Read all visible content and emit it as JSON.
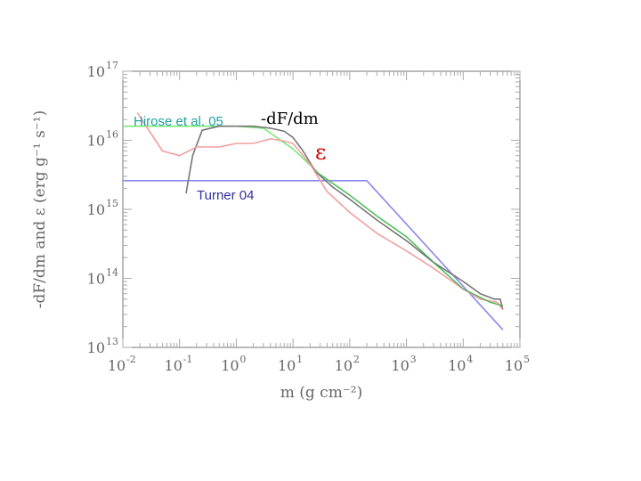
{
  "colors": {
    "background": "#ffffff",
    "frame": "#777777",
    "ticks": "#aaaaaa",
    "text": "#666666",
    "green": "#78e878",
    "darkgreen": "#3aa84a",
    "gray": "#777777",
    "pink": "#f0a0a0",
    "blue": "#8888ee",
    "label_hirose": "#22a0a0",
    "label_turner": "#3030a0",
    "label_dfdm": "#000000",
    "label_eps": "#cc0000"
  },
  "chart_data": {
    "type": "line",
    "xscale": "log",
    "yscale": "log",
    "xlim": [
      0.01,
      100000
    ],
    "ylim": [
      10000000000000.0,
      1e+17
    ],
    "xlabel": "m (g cm⁻²)",
    "ylabel": "-dF/dm and ε (erg g⁻¹ s⁻¹)",
    "xticks": [
      {
        "value": 0.01,
        "base": "10",
        "exp": "-2"
      },
      {
        "value": 0.1,
        "base": "10",
        "exp": "-1"
      },
      {
        "value": 1,
        "base": "10",
        "exp": "0"
      },
      {
        "value": 10,
        "base": "10",
        "exp": "1"
      },
      {
        "value": 100,
        "base": "10",
        "exp": "2"
      },
      {
        "value": 1000,
        "base": "10",
        "exp": "3"
      },
      {
        "value": 10000,
        "base": "10",
        "exp": "4"
      },
      {
        "value": 100000,
        "base": "10",
        "exp": "5"
      }
    ],
    "yticks": [
      {
        "value": 10000000000000.0,
        "base": "10",
        "exp": "13"
      },
      {
        "value": 100000000000000.0,
        "base": "10",
        "exp": "14"
      },
      {
        "value": 1000000000000000.0,
        "base": "10",
        "exp": "15"
      },
      {
        "value": 1e+16,
        "base": "10",
        "exp": "16"
      },
      {
        "value": 1e+17,
        "base": "10",
        "exp": "17"
      }
    ],
    "series": [
      {
        "name": "Turner 04",
        "color_key": "blue",
        "x": [
          0.01,
          200,
          50000
        ],
        "y": [
          2600000000000000.0,
          2600000000000000.0,
          18000000000000.0
        ]
      },
      {
        "name": "Hirose et al. 05",
        "color_key": "green",
        "x": [
          0.01,
          1,
          3,
          10,
          30,
          100,
          300,
          1000,
          3000,
          10000,
          30000,
          50000
        ],
        "y": [
          1.6e+16,
          1.6e+16,
          1.5e+16,
          7500000000000000.0,
          3200000000000000.0,
          1600000000000000.0,
          800000000000000.0,
          400000000000000.0,
          170000000000000.0,
          70000000000000.0,
          45000000000000.0,
          40000000000000.0
        ]
      },
      {
        "name": "-dF/dm",
        "color_key": "gray",
        "x": [
          0.13,
          0.17,
          0.25,
          0.5,
          1,
          2,
          4,
          7,
          10,
          15,
          25,
          50,
          100,
          300,
          1000,
          3000,
          10000,
          20000,
          35000,
          45000,
          50000
        ],
        "y": [
          1700000000000000.0,
          6000000000000000.0,
          1.4e+16,
          1.6e+16,
          1.6e+16,
          1.6e+16,
          1.5e+16,
          1.35e+16,
          1.1e+16,
          7000000000000000.0,
          3500000000000000.0,
          2100000000000000.0,
          1400000000000000.0,
          700000000000000.0,
          350000000000000.0,
          170000000000000.0,
          90000000000000.0,
          60000000000000.0,
          50000000000000.0,
          50000000000000.0,
          35000000000000.0
        ]
      },
      {
        "name": "ε",
        "color_key": "pink",
        "x": [
          0.018,
          0.05,
          0.1,
          0.2,
          0.5,
          1,
          2,
          4,
          6,
          10,
          20,
          40,
          100,
          300,
          1000,
          3000,
          10000,
          20000,
          40000,
          50000
        ],
        "y": [
          2.5e+16,
          7000000000000000.0,
          6000000000000000.0,
          8000000000000000.0,
          8000000000000000.0,
          9000000000000000.0,
          9000000000000000.0,
          1.05e+16,
          1e+16,
          9000000000000000.0,
          4500000000000000.0,
          1800000000000000.0,
          900000000000000.0,
          450000000000000.0,
          250000000000000.0,
          140000000000000.0,
          70000000000000.0,
          50000000000000.0,
          45000000000000.0,
          35000000000000.0
        ]
      }
    ],
    "annotations": [
      {
        "text": "Hirose et al. 05",
        "color_key": "label_hirose",
        "font": "sans"
      },
      {
        "text": "-dF/dm",
        "color_key": "label_dfdm",
        "font": "serif"
      },
      {
        "text": "ε",
        "color_key": "label_eps",
        "font": "serif"
      },
      {
        "text": "Turner 04",
        "color_key": "label_turner",
        "font": "sans"
      }
    ]
  }
}
